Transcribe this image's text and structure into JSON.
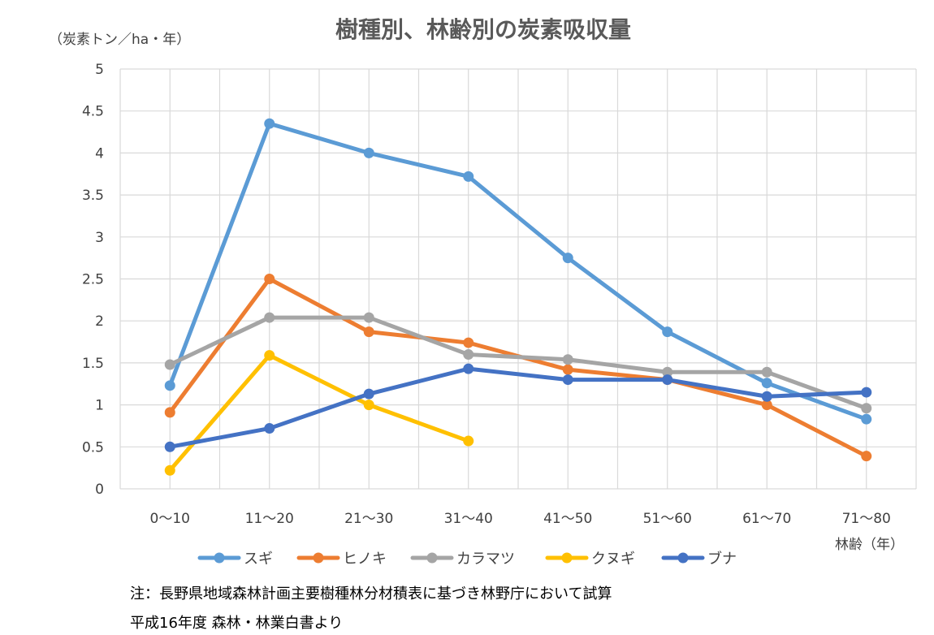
{
  "chart_data": {
    "type": "line",
    "title": "樹種別、林齢別の炭素吸収量",
    "ylabel": "（炭素トン／ha・年）",
    "xlabel": "林齢（年）",
    "ylim": [
      0,
      5
    ],
    "y_ticks": [
      0,
      0.5,
      1,
      1.5,
      2,
      2.5,
      3,
      3.5,
      4,
      4.5,
      5
    ],
    "y_tick_labels": [
      "0",
      "0.5",
      "1",
      "1.5",
      "2",
      "2.5",
      "3",
      "3.5",
      "4",
      "4.5",
      "5"
    ],
    "grid": true,
    "legend_position": "bottom",
    "categories": [
      "0〜10",
      "11〜20",
      "21〜30",
      "31〜40",
      "41〜50",
      "51〜60",
      "61〜70",
      "71〜80"
    ],
    "series": [
      {
        "name": "スギ",
        "color": "#5B9BD5",
        "values": [
          1.23,
          4.35,
          4.0,
          3.72,
          2.75,
          1.87,
          1.26,
          0.83
        ]
      },
      {
        "name": "ヒノキ",
        "color": "#ED7D31",
        "values": [
          0.91,
          2.5,
          1.87,
          1.74,
          1.42,
          1.3,
          1.0,
          0.39
        ]
      },
      {
        "name": "カラマツ",
        "color": "#A5A5A5",
        "values": [
          1.48,
          2.04,
          2.04,
          1.6,
          1.54,
          1.39,
          1.39,
          0.96
        ]
      },
      {
        "name": "クヌギ",
        "color": "#FFC000",
        "values": [
          0.22,
          1.59,
          1.0,
          0.57,
          null,
          null,
          null,
          null
        ]
      },
      {
        "name": "ブナ",
        "color": "#4472C4",
        "values": [
          0.5,
          0.72,
          1.13,
          1.43,
          1.3,
          1.3,
          1.1,
          1.15
        ]
      }
    ]
  },
  "notes": [
    "注：長野県地域森林計画主要樹種林分材積表に基づき林野庁において試算",
    "平成16年度 森林・林業白書より"
  ]
}
